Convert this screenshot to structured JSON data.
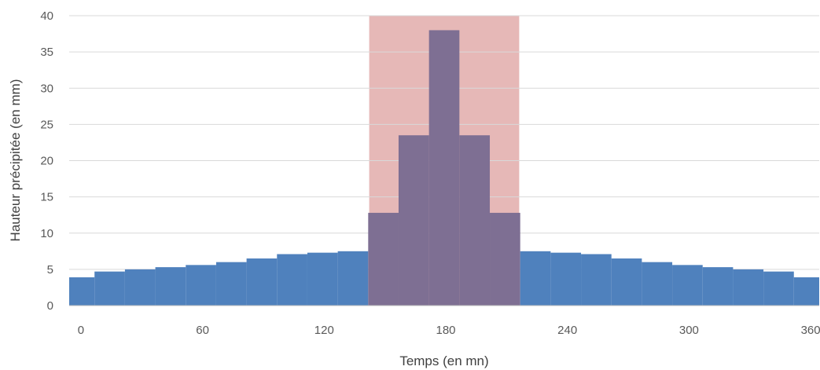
{
  "chart_data": {
    "type": "bar",
    "xlabel": "Temps (en mn)",
    "ylabel": "Hauteur précipitée (en mm)",
    "ylim": [
      0,
      40
    ],
    "yticks": [
      0,
      5,
      10,
      15,
      20,
      25,
      30,
      35,
      40
    ],
    "xlim": [
      -5,
      365
    ],
    "xticks": [
      0,
      60,
      120,
      180,
      240,
      300,
      360
    ],
    "grid": true,
    "bin_width_mn": 15,
    "x": [
      0,
      15,
      30,
      45,
      60,
      75,
      90,
      105,
      120,
      135,
      150,
      165,
      180,
      195,
      210,
      225,
      240,
      255,
      270,
      285,
      300,
      315,
      330,
      345,
      360
    ],
    "values": [
      3.9,
      4.7,
      5.0,
      5.3,
      5.6,
      6.0,
      6.5,
      7.1,
      7.3,
      7.5,
      12.8,
      23.5,
      38.0,
      23.5,
      12.8,
      7.5,
      7.3,
      7.1,
      6.5,
      6.0,
      5.6,
      5.3,
      5.0,
      4.7,
      3.9
    ],
    "highlight": {
      "x_start": 143,
      "x_end": 217
    },
    "colors": {
      "base_bar": "#4f81bd",
      "highlight_bar": "#7e6f93",
      "highlight_band": "#e6b8b7",
      "gridline": "#d9d9d9",
      "text": "#595959"
    }
  }
}
